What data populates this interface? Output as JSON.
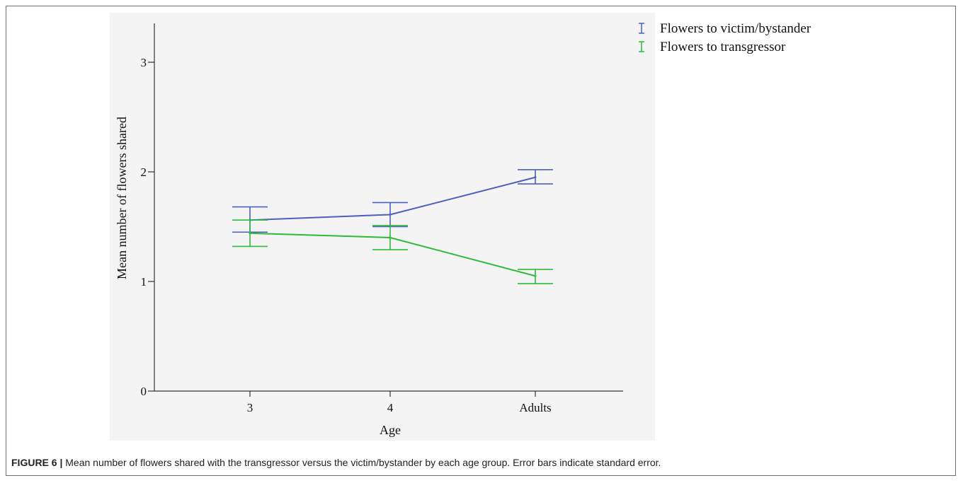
{
  "caption": {
    "label": "FIGURE 6 |",
    "text": "Mean number of flowers shared with the transgressor versus the victim/bystander by each age group. Error bars indicate standard error."
  },
  "chart_data": {
    "type": "line",
    "xlabel": "Age",
    "ylabel": "Mean number of flowers shared",
    "categories": [
      "3",
      "4",
      "Adults"
    ],
    "ylim": [
      0,
      3.3
    ],
    "yticks": [
      0,
      1,
      2,
      3
    ],
    "ytick_labels": [
      "0",
      "1",
      "2",
      "3"
    ],
    "legend_position": "top-right",
    "grid": false,
    "series": [
      {
        "name": "Flowers to victim/bystander",
        "color": "#4b5fc1",
        "values": [
          1.56,
          1.61,
          1.95
        ],
        "err_low": [
          1.45,
          1.5,
          1.89
        ],
        "err_high": [
          1.68,
          1.72,
          2.02
        ]
      },
      {
        "name": "Flowers to transgressor",
        "color": "#2dbb3a",
        "values": [
          1.44,
          1.4,
          1.05
        ],
        "err_low": [
          1.32,
          1.29,
          0.98
        ],
        "err_high": [
          1.56,
          1.51,
          1.11
        ]
      }
    ]
  }
}
